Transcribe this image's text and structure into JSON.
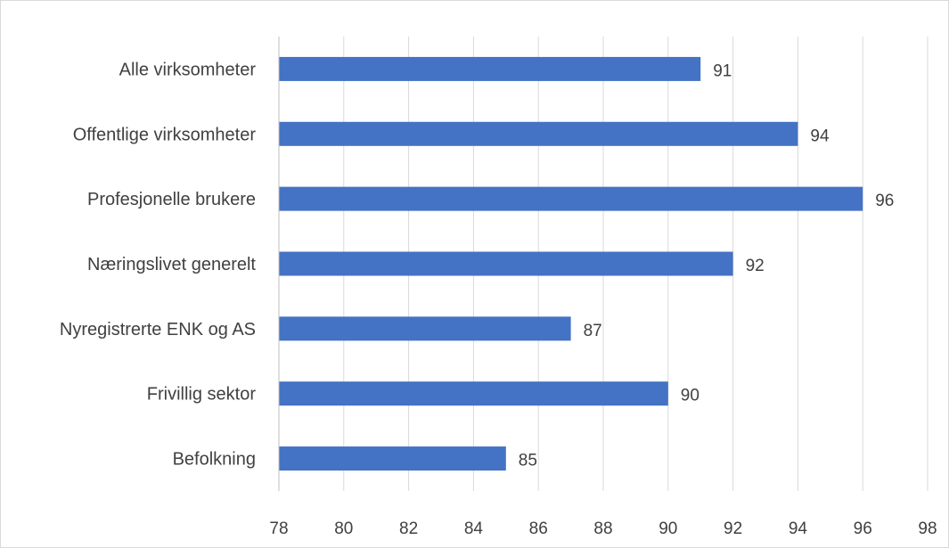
{
  "chart_data": {
    "type": "bar",
    "orientation": "horizontal",
    "categories": [
      "Alle virksomheter",
      "Offentlige virksomheter",
      "Profesjonelle brukere",
      "Næringslivet generelt",
      "Nyregistrerte ENK og AS",
      "Frivillig sektor",
      "Befolkning"
    ],
    "values": [
      91,
      94,
      96,
      92,
      87,
      90,
      85
    ],
    "data_labels": [
      "91",
      "94",
      "96",
      "92",
      "87",
      "90",
      "85"
    ],
    "xlim": [
      78,
      98
    ],
    "x_ticks": [
      78,
      80,
      82,
      84,
      86,
      88,
      90,
      92,
      94,
      96,
      98
    ],
    "x_tick_labels": [
      "78",
      "80",
      "82",
      "84",
      "86",
      "88",
      "90",
      "92",
      "94",
      "96",
      "98"
    ],
    "grid": "vertical",
    "legend": "none",
    "colors": {
      "bar": "#4472c4",
      "grid": "#d9d9d9",
      "text": "#404040",
      "axis": "#bfbfbf"
    }
  }
}
